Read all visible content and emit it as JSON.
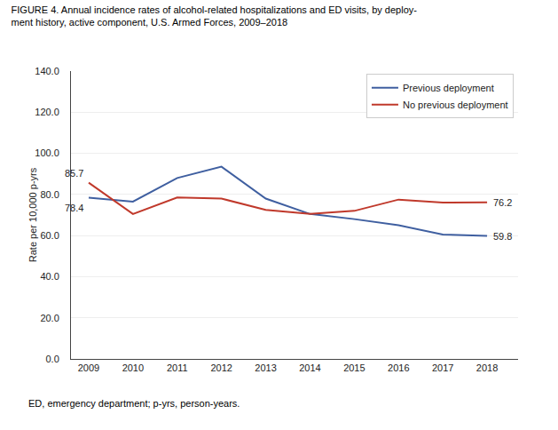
{
  "chart_data": {
    "type": "line",
    "title": "FIGURE 4. Annual incidence rates of alcohol-related hospitalizations and ED visits, by deploy-\nment history, active component, U.S. Armed Forces, 2009–2018",
    "footnote": "ED, emergency department; p-yrs, person-years.",
    "y_label": "Rate per 10,000 p-yrs",
    "x": [
      2009,
      2010,
      2011,
      2012,
      2013,
      2014,
      2015,
      2016,
      2017,
      2018
    ],
    "series": [
      {
        "name": "Previous deployment",
        "color": "#3F5FA0",
        "values": [
          78.4,
          76.5,
          88.0,
          93.5,
          78.0,
          70.5,
          68.0,
          65.0,
          60.5,
          59.8
        ]
      },
      {
        "name": "No previous deployment",
        "color": "#C0392B",
        "values": [
          85.7,
          70.5,
          78.5,
          78.0,
          72.5,
          70.5,
          72.0,
          77.5,
          76.0,
          76.2
        ]
      }
    ],
    "annotations": [
      {
        "text": "85.7",
        "x": 2009,
        "y": 85.7
      },
      {
        "text": "78.4",
        "x": 2009,
        "y": 78.4
      },
      {
        "text": "76.2",
        "x": 2018,
        "y": 76.2
      },
      {
        "text": "59.8",
        "x": 2018,
        "y": 59.8
      }
    ],
    "xlim": [
      2008.6,
      2018.7
    ],
    "xticks": [
      2009,
      2010,
      2011,
      2012,
      2013,
      2014,
      2015,
      2016,
      2017,
      2018
    ],
    "ylim": [
      0,
      140
    ],
    "yticks": [
      {
        "value": 0,
        "label": "0.0"
      },
      {
        "value": 20.0,
        "label": "20.0"
      },
      {
        "value": 40.0,
        "label": "40.0"
      },
      {
        "value": 60.0,
        "label": "60.0"
      },
      {
        "value": 80.0,
        "label": "80.0"
      },
      {
        "value": 100.0,
        "label": "100.0"
      },
      {
        "value": 120.0,
        "label": "120.0"
      },
      {
        "value": 140.0,
        "label": "140.0"
      }
    ],
    "grid": "y",
    "legend": "upper right"
  }
}
